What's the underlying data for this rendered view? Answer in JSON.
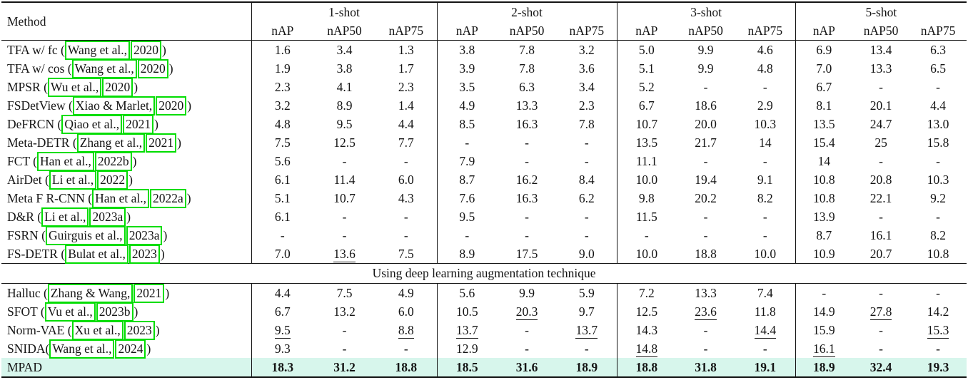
{
  "table": {
    "method_header": "Method",
    "groups": [
      {
        "label": "1-shot",
        "columns": [
          "nAP",
          "nAP50",
          "nAP75"
        ]
      },
      {
        "label": "2-shot",
        "columns": [
          "nAP",
          "nAP50",
          "nAP75"
        ]
      },
      {
        "label": "3-shot",
        "columns": [
          "nAP",
          "nAP50",
          "nAP75"
        ]
      },
      {
        "label": "5-shot",
        "columns": [
          "nAP",
          "nAP50",
          "nAP75"
        ]
      }
    ],
    "section_divider": "Using deep learning augmentation technique",
    "colors": {
      "highlight_row": "#d7f6ec",
      "citation_box": "#00dd00"
    },
    "rows_main": [
      {
        "method": {
          "prefix": "TFA w/ fc (",
          "author": "Wang et al.,",
          "year": "2020",
          "suffix": ")"
        },
        "values": [
          "1.6",
          "3.4",
          "1.3",
          "3.8",
          "7.8",
          "3.2",
          "5.0",
          "9.9",
          "4.6",
          "6.9",
          "13.4",
          "6.3"
        ],
        "underline": []
      },
      {
        "method": {
          "prefix": "TFA w/ cos (",
          "author": "Wang et al.,",
          "year": "2020",
          "suffix": ")"
        },
        "values": [
          "1.9",
          "3.8",
          "1.7",
          "3.9",
          "7.8",
          "3.6",
          "5.1",
          "9.9",
          "4.8",
          "7.0",
          "13.3",
          "6.5"
        ],
        "underline": []
      },
      {
        "method": {
          "prefix": "MPSR (",
          "author": "Wu et al.,",
          "year": "2020",
          "suffix": ")"
        },
        "values": [
          "2.3",
          "4.1",
          "2.3",
          "3.5",
          "6.3",
          "3.4",
          "5.2",
          "-",
          "-",
          "6.7",
          "-",
          "-"
        ],
        "underline": []
      },
      {
        "method": {
          "prefix": "FSDetView (",
          "author": "Xiao & Marlet,",
          "year": "2020",
          "suffix": ")"
        },
        "values": [
          "3.2",
          "8.9",
          "1.4",
          "4.9",
          "13.3",
          "2.3",
          "6.7",
          "18.6",
          "2.9",
          "8.1",
          "20.1",
          "4.4"
        ],
        "underline": []
      },
      {
        "method": {
          "prefix": "DeFRCN (",
          "author": "Qiao et al.,",
          "year": "2021",
          "suffix": ")"
        },
        "values": [
          "4.8",
          "9.5",
          "4.4",
          "8.5",
          "16.3",
          "7.8",
          "10.7",
          "20.0",
          "10.3",
          "13.5",
          "24.7",
          "13.0"
        ],
        "underline": []
      },
      {
        "method": {
          "prefix": "Meta-DETR (",
          "author": "Zhang et al.,",
          "year": "2021",
          "suffix": ")"
        },
        "values": [
          "7.5",
          "12.5",
          "7.7",
          "-",
          "-",
          "-",
          "13.5",
          "21.7",
          "14",
          "15.4",
          "25",
          "15.8"
        ],
        "underline": []
      },
      {
        "method": {
          "prefix": "FCT (",
          "author": "Han et al.,",
          "year": "2022b",
          "suffix": ")"
        },
        "values": [
          "5.6",
          "-",
          "-",
          "7.9",
          "-",
          "-",
          "11.1",
          "-",
          "-",
          "14",
          "-",
          "-"
        ],
        "underline": []
      },
      {
        "method": {
          "prefix": "AirDet (",
          "author": "Li et al.,",
          "year": "2022",
          "suffix": ")"
        },
        "values": [
          "6.1",
          "11.4",
          "6.0",
          "8.7",
          "16.2",
          "8.4",
          "10.0",
          "19.4",
          "9.1",
          "10.8",
          "20.8",
          "10.3"
        ],
        "underline": []
      },
      {
        "method": {
          "prefix": "Meta F R-CNN (",
          "author": "Han et al.,",
          "year": "2022a",
          "suffix": ")"
        },
        "values": [
          "5.1",
          "10.7",
          "4.3",
          "7.6",
          "16.3",
          "6.2",
          "9.8",
          "20.2",
          "8.2",
          "10.8",
          "22.1",
          "9.2"
        ],
        "underline": []
      },
      {
        "method": {
          "prefix": "D&R (",
          "author": "Li et al.,",
          "year": "2023a",
          "suffix": ")"
        },
        "values": [
          "6.1",
          "-",
          "-",
          "9.5",
          "-",
          "-",
          "11.5",
          "-",
          "-",
          "13.9",
          "-",
          "-"
        ],
        "underline": []
      },
      {
        "method": {
          "prefix": "FSRN (",
          "author": "Guirguis et al.,",
          "year": "2023a",
          "suffix": ")"
        },
        "values": [
          "-",
          "-",
          "-",
          "-",
          "-",
          "-",
          "-",
          "-",
          "-",
          "8.7",
          "16.1",
          "8.2"
        ],
        "underline": []
      },
      {
        "method": {
          "prefix": "FS-DETR (",
          "author": "Bulat et al.,",
          "year": "2023",
          "suffix": ")"
        },
        "values": [
          "7.0",
          "13.6",
          "7.5",
          "8.9",
          "17.5",
          "9.0",
          "10.0",
          "18.8",
          "10.0",
          "10.9",
          "20.7",
          "10.8"
        ],
        "underline": [
          1
        ]
      }
    ],
    "rows_aug": [
      {
        "method": {
          "prefix": "Halluc (",
          "author": "Zhang & Wang,",
          "year": "2021",
          "suffix": ")"
        },
        "values": [
          "4.4",
          "7.5",
          "4.9",
          "5.6",
          "9.9",
          "5.9",
          "7.2",
          "13.3",
          "7.4",
          "-",
          "-",
          "-"
        ],
        "underline": []
      },
      {
        "method": {
          "prefix": "SFOT (",
          "author": "Vu et al.,",
          "year": "2023b",
          "suffix": ")"
        },
        "values": [
          "6.7",
          "13.2",
          "6.0",
          "10.5",
          "20.3",
          "9.7",
          "12.5",
          "23.6",
          "11.8",
          "14.9",
          "27.8",
          "14.2"
        ],
        "underline": [
          4,
          7,
          10
        ]
      },
      {
        "method": {
          "prefix": "Norm-VAE (",
          "author": "Xu et al.,",
          "year": "2023",
          "suffix": ")"
        },
        "values": [
          "9.5",
          "-",
          "8.8",
          "13.7",
          "-",
          "13.7",
          "14.3",
          "-",
          "14.4",
          "15.9",
          "-",
          "15.3"
        ],
        "underline": [
          0,
          2,
          3,
          5,
          8,
          11
        ]
      },
      {
        "method": {
          "prefix": "SNIDA(",
          "author": "Wang et al.,",
          "year": "2024",
          "suffix": ")"
        },
        "values": [
          "9.3",
          "-",
          "-",
          "12.9",
          "-",
          "-",
          "14.8",
          "-",
          "-",
          "16.1",
          "-",
          "-"
        ],
        "underline": [
          6,
          9
        ]
      },
      {
        "method": {
          "prefix": "MPAD",
          "author": "",
          "year": "",
          "suffix": ""
        },
        "values": [
          "18.3",
          "31.2",
          "18.8",
          "18.5",
          "31.6",
          "18.9",
          "18.8",
          "31.8",
          "19.1",
          "18.9",
          "32.4",
          "19.3"
        ],
        "underline": [],
        "bold": true,
        "highlight": true
      }
    ]
  }
}
